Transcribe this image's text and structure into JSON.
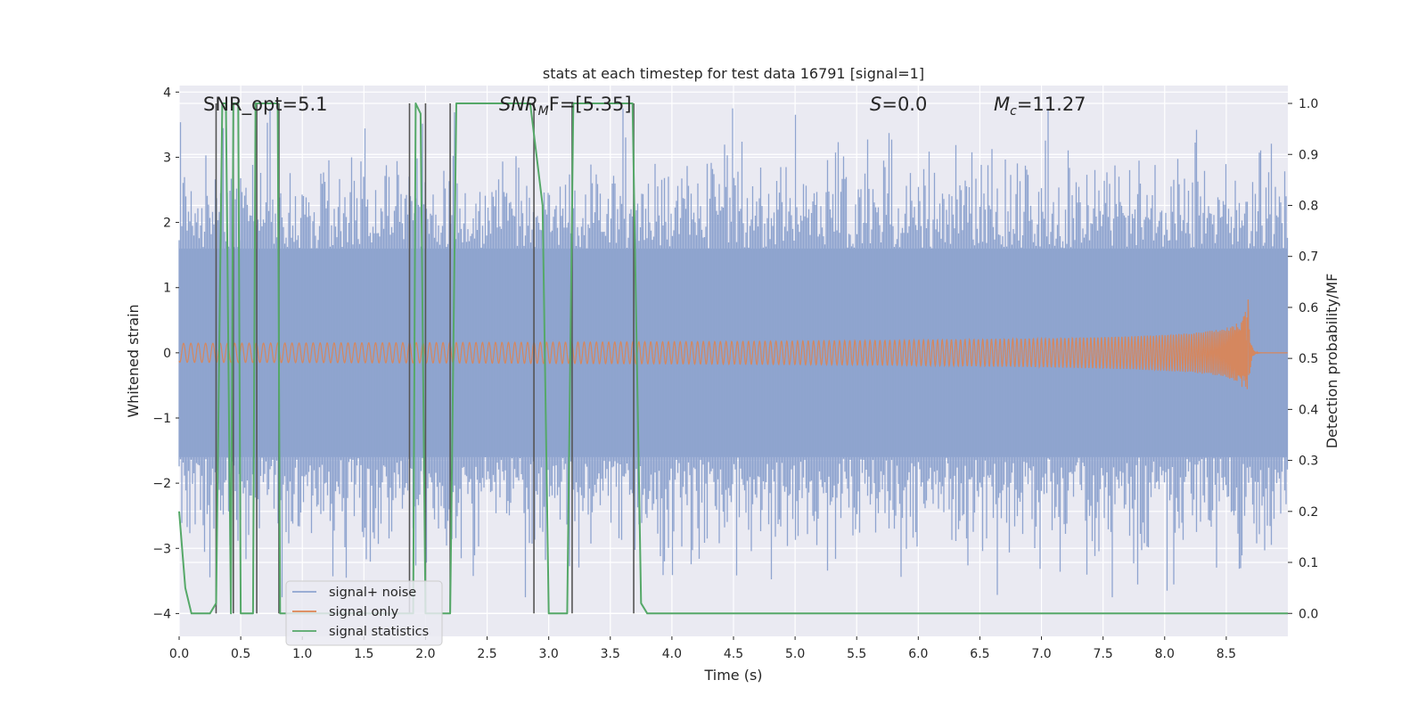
{
  "chart_data": {
    "type": "line",
    "title": "stats at each timestep for test data 16791 [signal=1]",
    "xlabel": "Time (s)",
    "ylabel": "Whitened strain",
    "y2label": "Detection probability/MF",
    "xlim": [
      0.0,
      9.0
    ],
    "ylim": [
      -4.35,
      4.1
    ],
    "y2lim": [
      -0.045,
      1.035
    ],
    "xticks": [
      0.0,
      0.5,
      1.0,
      1.5,
      2.0,
      2.5,
      3.0,
      3.5,
      4.0,
      4.5,
      5.0,
      5.5,
      6.0,
      6.5,
      7.0,
      7.5,
      8.0,
      8.5
    ],
    "xtick_labels": [
      "0.0",
      "0.5",
      "1.0",
      "1.5",
      "2.0",
      "2.5",
      "3.0",
      "3.5",
      "4.0",
      "4.5",
      "5.0",
      "5.5",
      "6.0",
      "6.5",
      "7.0",
      "7.5",
      "8.0",
      "8.5"
    ],
    "yticks": [
      4,
      3,
      2,
      1,
      0,
      -1,
      -2,
      -3,
      -4
    ],
    "ytick_labels": [
      "4",
      "3",
      "2",
      "1",
      "0",
      "−1",
      "−2",
      "−3",
      "−4"
    ],
    "y2ticks": [
      1.0,
      0.9,
      0.8,
      0.7,
      0.6,
      0.5,
      0.4,
      0.3,
      0.2,
      0.1,
      0.0
    ],
    "y2tick_labels": [
      "1.0",
      "0.9",
      "0.8",
      "0.7",
      "0.6",
      "0.5",
      "0.4",
      "0.3",
      "0.2",
      "0.1",
      "0.0"
    ],
    "grid": true,
    "legend_position": "lower-left",
    "annotations": {
      "snr_opt": "SNR_opt=5.1",
      "snr_mf_label": "SNR",
      "snr_mf_sub": "M",
      "snr_mf_value": "F=[5.35]",
      "s_label": "S",
      "s_value": "=0.0",
      "mc_label": "M",
      "mc_sub": "c",
      "mc_value": "=11.27"
    },
    "series": [
      {
        "name": "signal+ noise",
        "color": "#8fa4cf",
        "description": "whitened strain noise band, approx. envelope 1.5 to 3.8 amplitude",
        "envelope_typical": 1.6,
        "peak_max": 3.75,
        "peak_min": -3.75
      },
      {
        "name": "signal only",
        "color": "#dd8452",
        "description": "chirp waveform, merger near t=8.68 s",
        "merger_time": 8.68,
        "peak_amplitude": 1.05
      },
      {
        "name": "signal statistics",
        "color": "#55a868",
        "x": [
          0.0,
          0.05,
          0.1,
          0.25,
          0.3,
          0.35,
          0.38,
          0.42,
          0.44,
          0.48,
          0.5,
          0.55,
          0.6,
          0.62,
          0.68,
          0.7,
          0.8,
          0.82,
          0.86,
          0.9,
          1.0,
          1.5,
          1.8,
          1.9,
          1.92,
          1.96,
          2.0,
          2.02,
          2.1,
          2.15,
          2.2,
          2.25,
          2.5,
          2.85,
          2.95,
          3.0,
          3.05,
          3.15,
          3.2,
          3.25,
          3.5,
          3.68,
          3.75,
          3.8,
          4.0,
          9.0
        ],
        "y": [
          0.2,
          0.05,
          0.0,
          0.0,
          0.02,
          1.0,
          1.0,
          0.0,
          1.0,
          1.0,
          0.0,
          0.0,
          0.0,
          1.0,
          1.0,
          1.0,
          1.0,
          0.0,
          0.0,
          0.0,
          0.0,
          0.0,
          0.0,
          0.0,
          1.0,
          0.98,
          0.0,
          0.0,
          0.0,
          0.0,
          0.0,
          1.0,
          1.0,
          1.0,
          0.8,
          0.0,
          0.0,
          0.0,
          1.0,
          1.0,
          1.0,
          1.0,
          0.02,
          0.0,
          0.0,
          0.0
        ]
      }
    ],
    "vertical_lines": {
      "color": "#555555",
      "x": [
        0.3,
        0.44,
        0.63,
        0.81,
        1.87,
        2.0,
        2.2,
        2.88,
        3.19,
        3.69
      ]
    }
  }
}
